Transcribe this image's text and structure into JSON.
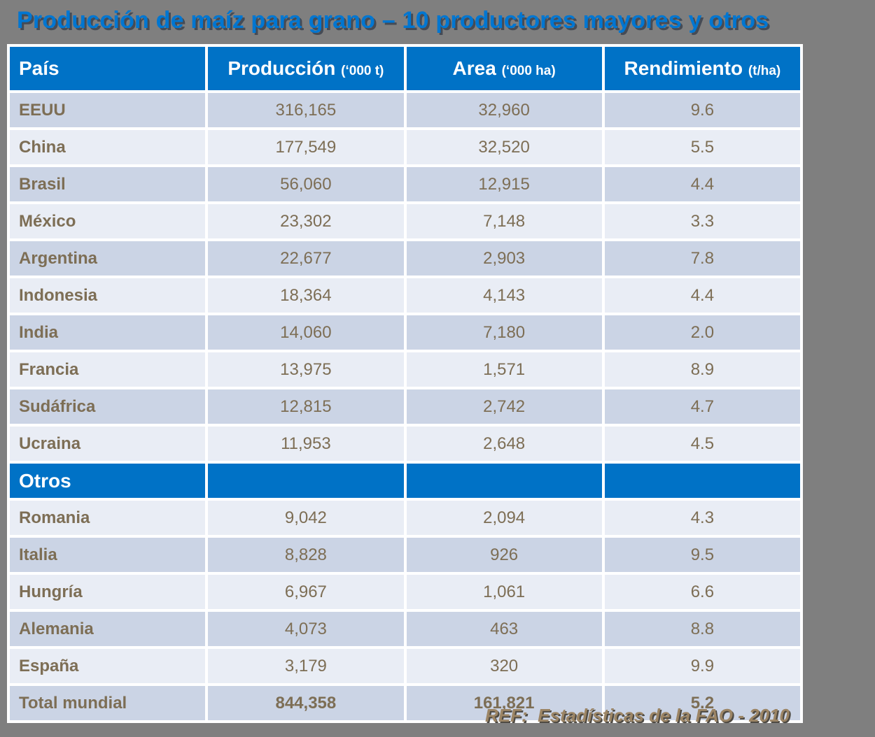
{
  "title": "Producción de maíz para grano – 10 productores mayores y otros",
  "table": {
    "columns": [
      {
        "label": "País",
        "unit": ""
      },
      {
        "label": "Producción",
        "unit": "(‘000 t)"
      },
      {
        "label": "Area",
        "unit": "(‘000 ha)"
      },
      {
        "label": "Rendimiento",
        "unit": "(t/ha)"
      }
    ],
    "rows": [
      {
        "pais": "EEUU",
        "produccion": "316,165",
        "area": "32,960",
        "rendimiento": "9.6",
        "shade": "dark"
      },
      {
        "pais": "China",
        "produccion": "177,549",
        "area": "32,520",
        "rendimiento": "5.5",
        "shade": "light"
      },
      {
        "pais": "Brasil",
        "produccion": "56,060",
        "area": "12,915",
        "rendimiento": "4.4",
        "shade": "dark"
      },
      {
        "pais": "México",
        "produccion": "23,302",
        "area": "7,148",
        "rendimiento": "3.3",
        "shade": "light"
      },
      {
        "pais": "Argentina",
        "produccion": "22,677",
        "area": "2,903",
        "rendimiento": "7.8",
        "shade": "dark"
      },
      {
        "pais": "Indonesia",
        "produccion": "18,364",
        "area": "4,143",
        "rendimiento": "4.4",
        "shade": "light"
      },
      {
        "pais": "India",
        "produccion": "14,060",
        "area": "7,180",
        "rendimiento": "2.0",
        "shade": "dark"
      },
      {
        "pais": "Francia",
        "produccion": "13,975",
        "area": "1,571",
        "rendimiento": "8.9",
        "shade": "light"
      },
      {
        "pais": "Sudáfrica",
        "produccion": "12,815",
        "area": "2,742",
        "rendimiento": "4.7",
        "shade": "dark"
      },
      {
        "pais": "Ucraina",
        "produccion": "11,953",
        "area": "2,648",
        "rendimiento": "4.5",
        "shade": "light"
      },
      {
        "type": "section",
        "pais": "Otros"
      },
      {
        "pais": "Romania",
        "produccion": "9,042",
        "area": "2,094",
        "rendimiento": "4.3",
        "shade": "light"
      },
      {
        "pais": "Italia",
        "produccion": "8,828",
        "area": "926",
        "rendimiento": "9.5",
        "shade": "dark"
      },
      {
        "pais": "Hungría",
        "produccion": "6,967",
        "area": "1,061",
        "rendimiento": "6.6",
        "shade": "light"
      },
      {
        "pais": "Alemania",
        "produccion": "4,073",
        "area": "463",
        "rendimiento": "8.8",
        "shade": "dark"
      },
      {
        "pais": "España",
        "produccion": "3,179",
        "area": "320",
        "rendimiento": "9.9",
        "shade": "light"
      },
      {
        "pais": "Total mundial",
        "produccion": "844,358",
        "area": "161,821",
        "rendimiento": "5.2",
        "shade": "dark",
        "bold": true
      }
    ]
  },
  "footer": {
    "ref": "REF:  Estadísticas de la FAO - 2010"
  },
  "colors": {
    "header_blue": "#0072C6",
    "title_blue": "#0076D1",
    "row_dark": "#CBD4E5",
    "row_light": "#E9EDF5",
    "text_brown": "#7D6E55",
    "footer_tan": "#9C8565",
    "background_gray": "#7F7F7F",
    "grid_white": "#FFFFFF"
  }
}
